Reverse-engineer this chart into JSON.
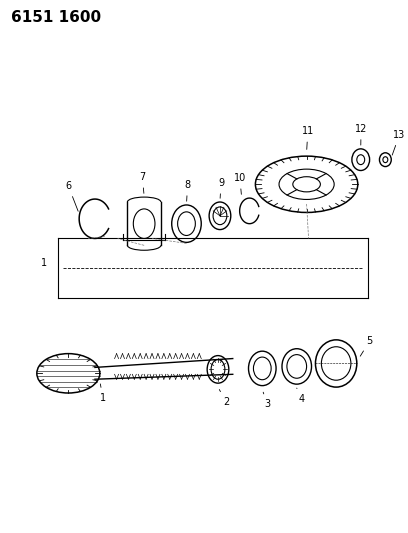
{
  "title": "6151 1600",
  "bg_color": "#ffffff",
  "line_color": "#000000",
  "fig_width": 4.08,
  "fig_height": 5.33,
  "dpi": 100
}
